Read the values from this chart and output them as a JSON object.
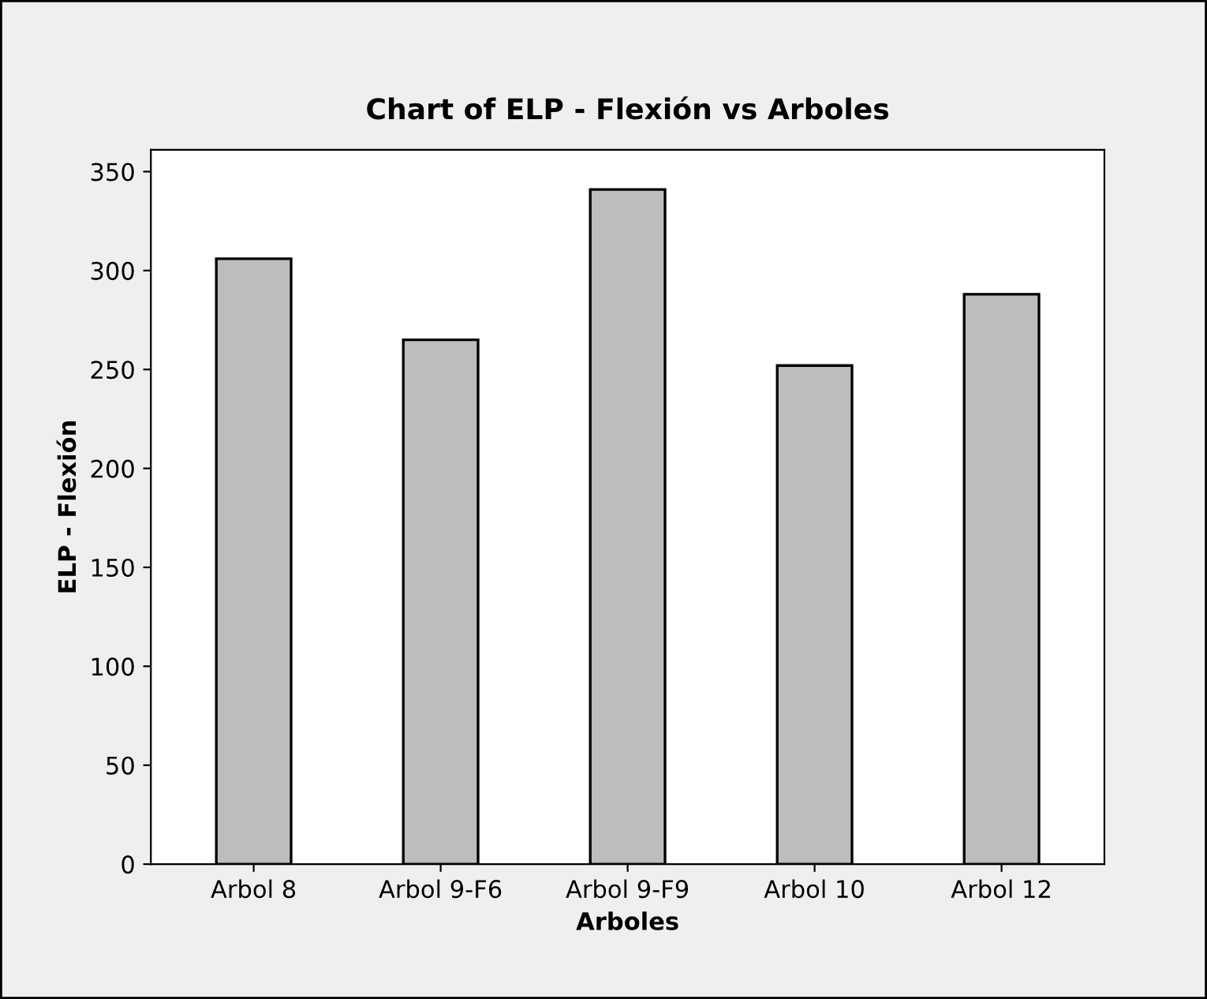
{
  "chart_data": {
    "type": "bar",
    "title": "Chart of ELP - Flexión vs Arboles",
    "xlabel": "Arboles",
    "ylabel": "ELP - Flexión",
    "categories": [
      "Arbol 8",
      "Arbol 9-F6",
      "Arbol 9-F9",
      "Arbol 10",
      "Arbol 12"
    ],
    "values": [
      306,
      265,
      341,
      252,
      288
    ],
    "color": "#bdbdbd",
    "ylim": [
      0,
      361
    ],
    "yticks": [
      0,
      50,
      100,
      150,
      200,
      250,
      300,
      350
    ],
    "grid": false
  }
}
